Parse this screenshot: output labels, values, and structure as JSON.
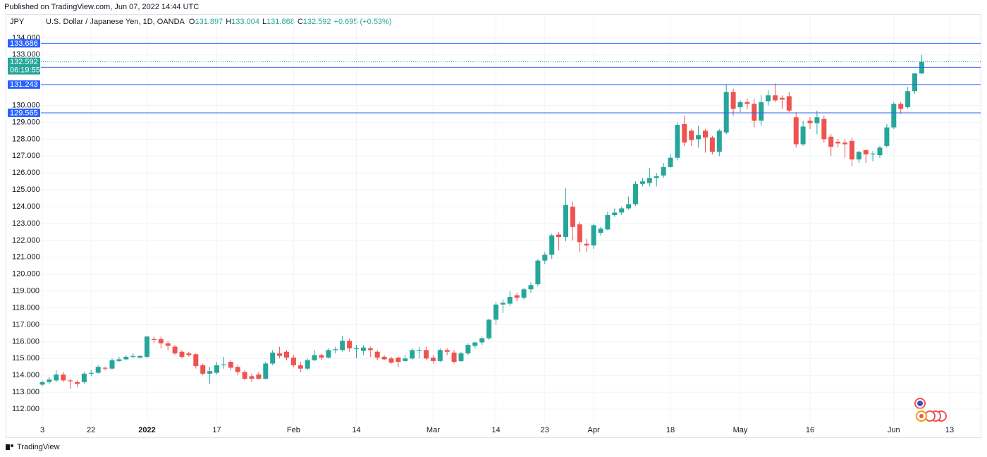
{
  "header": {
    "published": "Published on TradingView.com, Jun 07, 2022 14:44 UTC",
    "footer": "TradingView"
  },
  "chart_data": {
    "type": "candlestick",
    "symbol": "JPY",
    "title": "U.S. Dollar / Japanese Yen, 1D, OANDA",
    "ohlc_labels": [
      "O",
      "H",
      "L",
      "C"
    ],
    "change": "+0.695 (+0.53%)",
    "countdown": "06:19:55",
    "categories": [
      "3",
      null,
      null,
      null,
      null,
      null,
      null,
      "22",
      null,
      null,
      null,
      null,
      null,
      null,
      null,
      "2022",
      null,
      null,
      null,
      null,
      null,
      null,
      null,
      null,
      null,
      "17",
      null,
      null,
      null,
      null,
      null,
      null,
      null,
      null,
      null,
      null,
      "Feb",
      null,
      null,
      null,
      null,
      null,
      null,
      null,
      null,
      "14",
      null,
      null,
      null,
      null,
      null,
      null,
      null,
      null,
      null,
      null,
      "Mar",
      null,
      null,
      null,
      null,
      null,
      null,
      null,
      null,
      "14",
      null,
      null,
      null,
      null,
      null,
      null,
      "23",
      null,
      null,
      null,
      null,
      null,
      null,
      "Apr",
      null,
      null,
      null,
      null,
      null,
      null,
      null,
      null,
      null,
      null,
      "18",
      null,
      null,
      null,
      null,
      null,
      null,
      null,
      null,
      null,
      "May",
      null,
      null,
      null,
      null,
      null,
      null,
      null,
      null,
      null,
      "16",
      null,
      null,
      null,
      null,
      null,
      null,
      null,
      null,
      null,
      null,
      null,
      "Jun",
      null,
      null,
      null,
      null,
      null,
      null,
      null,
      "13"
    ],
    "open": [
      113.45,
      113.6,
      113.7,
      114.05,
      113.7,
      113.6,
      113.6,
      114.1,
      114.15,
      114.45,
      114.4,
      114.85,
      114.95,
      115.1,
      115.05,
      115.1,
      116.15,
      116.15,
      115.9,
      115.7,
      115.4,
      115.3,
      115.25,
      114.6,
      114.1,
      114.15,
      114.6,
      114.8,
      114.5,
      114.2,
      113.95,
      114.05,
      113.8,
      114.7,
      115.3,
      115.4,
      115.05,
      114.6,
      114.4,
      114.9,
      115.2,
      115.05,
      115.5,
      115.5,
      116.05,
      115.55,
      115.45,
      115.6,
      115.4,
      115.1,
      115.0,
      115.05,
      114.85,
      115.0,
      115.45,
      115.5,
      115.05,
      114.85,
      115.5,
      115.35,
      114.85,
      115.3,
      115.75,
      115.95,
      116.2,
      117.3,
      118.2,
      118.25,
      118.75,
      118.6,
      119.1,
      119.4,
      120.8,
      121.15,
      122.35,
      122.2,
      124.0,
      122.95,
      121.8,
      121.7,
      122.45,
      122.65,
      123.5,
      123.65,
      123.9,
      124.15,
      125.35,
      125.4,
      125.7,
      125.85,
      126.35,
      126.9,
      128.9,
      128.5,
      128.0,
      128.5,
      128.1,
      127.25,
      128.4,
      130.8,
      129.9,
      130.2,
      130.1,
      129.1,
      130.25,
      130.6,
      130.45,
      130.55,
      129.3,
      127.7,
      129.1,
      128.95,
      129.2,
      128.15,
      127.85,
      127.8,
      127.9,
      126.8,
      127.35,
      127.1,
      127.05,
      127.6,
      128.7,
      130.1,
      129.9,
      130.85,
      131.897,
      null,
      null,
      null,
      null
    ],
    "high": [
      113.7,
      113.9,
      114.3,
      114.2,
      113.8,
      113.7,
      114.2,
      114.3,
      114.6,
      114.5,
      115.0,
      115.1,
      115.2,
      115.3,
      115.2,
      116.35,
      116.3,
      116.3,
      116.05,
      115.8,
      115.5,
      115.4,
      115.3,
      114.7,
      114.5,
      114.8,
      115.1,
      114.9,
      114.6,
      114.3,
      114.1,
      114.2,
      114.8,
      115.5,
      115.7,
      115.5,
      115.2,
      114.8,
      115.0,
      115.5,
      115.3,
      115.6,
      115.7,
      116.35,
      116.2,
      115.8,
      115.8,
      115.7,
      115.5,
      115.2,
      115.1,
      115.1,
      115.2,
      115.6,
      115.7,
      115.7,
      115.2,
      115.6,
      115.6,
      115.5,
      115.4,
      115.9,
      116.0,
      116.3,
      117.35,
      118.35,
      118.5,
      119.0,
      118.9,
      119.2,
      119.5,
      120.9,
      121.3,
      122.4,
      122.5,
      125.1,
      124.3,
      123.1,
      122.1,
      123.0,
      122.8,
      123.7,
      123.9,
      124.0,
      124.6,
      125.5,
      125.7,
      126.3,
      126.0,
      126.6,
      127.1,
      129.0,
      129.4,
      128.6,
      128.8,
      128.6,
      128.2,
      128.6,
      131.25,
      131.0,
      130.3,
      130.4,
      130.4,
      130.6,
      130.9,
      131.3,
      130.6,
      130.8,
      129.6,
      129.1,
      129.3,
      129.7,
      129.4,
      128.3,
      128.0,
      128.0,
      128.1,
      127.3,
      127.4,
      127.3,
      127.6,
      128.9,
      130.2,
      130.2,
      131.1,
      131.9,
      133.004,
      null,
      null,
      null,
      null
    ],
    "low": [
      113.35,
      113.5,
      113.6,
      113.6,
      113.2,
      113.3,
      113.5,
      113.95,
      114.1,
      114.3,
      114.35,
      114.8,
      114.9,
      115.0,
      115.0,
      115.0,
      115.9,
      115.6,
      115.5,
      115.2,
      115.0,
      115.1,
      114.4,
      114.0,
      113.5,
      114.05,
      114.4,
      114.3,
      114.0,
      113.7,
      113.6,
      113.75,
      113.75,
      114.6,
      115.0,
      114.9,
      114.5,
      114.2,
      114.3,
      114.85,
      114.9,
      115.0,
      115.3,
      115.4,
      115.4,
      115.0,
      115.2,
      115.1,
      114.9,
      114.9,
      114.7,
      114.5,
      114.8,
      114.9,
      115.0,
      114.9,
      114.7,
      114.8,
      115.2,
      114.7,
      114.8,
      115.2,
      115.6,
      115.8,
      116.1,
      117.0,
      117.7,
      118.1,
      118.4,
      118.5,
      118.9,
      119.3,
      120.6,
      120.9,
      121.4,
      121.95,
      122.0,
      121.3,
      121.3,
      121.5,
      122.3,
      122.6,
      123.4,
      123.5,
      123.8,
      124.05,
      125.2,
      125.2,
      125.2,
      125.7,
      126.3,
      126.75,
      127.6,
      127.6,
      127.5,
      127.2,
      127.1,
      127.0,
      128.3,
      129.4,
      129.6,
      129.8,
      128.7,
      128.8,
      130.0,
      130.2,
      129.8,
      129.6,
      127.5,
      127.6,
      128.6,
      128.3,
      127.8,
      127.0,
      127.5,
      126.9,
      126.4,
      126.6,
      126.6,
      126.7,
      126.9,
      127.5,
      128.6,
      129.5,
      129.8,
      130.7,
      131.868,
      null,
      null,
      null,
      null
    ],
    "close": [
      113.6,
      113.75,
      114.05,
      113.7,
      113.65,
      113.5,
      114.1,
      114.15,
      114.5,
      114.4,
      114.9,
      114.95,
      115.1,
      115.15,
      115.15,
      116.3,
      116.1,
      115.9,
      115.75,
      115.3,
      115.1,
      115.2,
      114.55,
      114.1,
      114.25,
      114.6,
      114.65,
      114.45,
      114.2,
      113.8,
      113.8,
      113.8,
      114.7,
      115.35,
      115.15,
      115.05,
      114.6,
      114.4,
      114.9,
      115.2,
      115.05,
      115.5,
      115.55,
      116.05,
      115.6,
      115.6,
      115.65,
      115.5,
      115.05,
      114.95,
      114.75,
      114.8,
      115.0,
      115.5,
      115.5,
      115.0,
      114.85,
      115.5,
      115.4,
      114.8,
      115.3,
      115.8,
      115.95,
      116.2,
      117.3,
      118.2,
      118.3,
      118.65,
      118.6,
      119.1,
      119.35,
      120.8,
      121.15,
      122.3,
      122.2,
      124.1,
      122.8,
      121.9,
      121.7,
      122.9,
      122.7,
      123.5,
      123.65,
      123.9,
      124.15,
      125.35,
      125.5,
      125.7,
      125.8,
      126.35,
      126.9,
      128.85,
      127.8,
      127.95,
      128.25,
      128.1,
      127.25,
      128.5,
      130.8,
      129.8,
      130.2,
      130.1,
      129.1,
      130.2,
      130.6,
      130.3,
      130.35,
      129.7,
      127.7,
      128.75,
      128.95,
      129.3,
      128.0,
      127.55,
      127.75,
      127.7,
      126.8,
      127.25,
      127.1,
      127.15,
      127.5,
      128.7,
      130.1,
      129.8,
      130.85,
      131.9,
      132.592,
      null,
      null,
      null,
      null
    ],
    "up_color": "#26a69a",
    "down_color": "#ef5350",
    "ylim": [
      111.25,
      134.33
    ],
    "yticks": [
      {
        "value": 134,
        "label": "134.000"
      },
      {
        "value": 133,
        "label": "133.000"
      },
      {
        "value": 130,
        "label": "130.000"
      },
      {
        "value": 129,
        "label": "129.000"
      },
      {
        "value": 128,
        "label": "128.000"
      },
      {
        "value": 127,
        "label": "127.000"
      },
      {
        "value": 126,
        "label": "126.000"
      },
      {
        "value": 125,
        "label": "125.000"
      },
      {
        "value": 124,
        "label": "124.000"
      },
      {
        "value": 123,
        "label": "123.000"
      },
      {
        "value": 122,
        "label": "122.000"
      },
      {
        "value": 121,
        "label": "121.000"
      },
      {
        "value": 120,
        "label": "120.000"
      },
      {
        "value": 119,
        "label": "119.000"
      },
      {
        "value": 118,
        "label": "118.000"
      },
      {
        "value": 117,
        "label": "117.000"
      },
      {
        "value": 116,
        "label": "116.000"
      },
      {
        "value": 115,
        "label": "115.000"
      },
      {
        "value": 114,
        "label": "114.000"
      },
      {
        "value": 113,
        "label": "113.000"
      },
      {
        "value": 112,
        "label": "112.000"
      }
    ],
    "hlines": [
      133.686,
      132.265,
      131.243,
      129.565
    ],
    "hline_color": "#2962ff",
    "grid": true
  }
}
